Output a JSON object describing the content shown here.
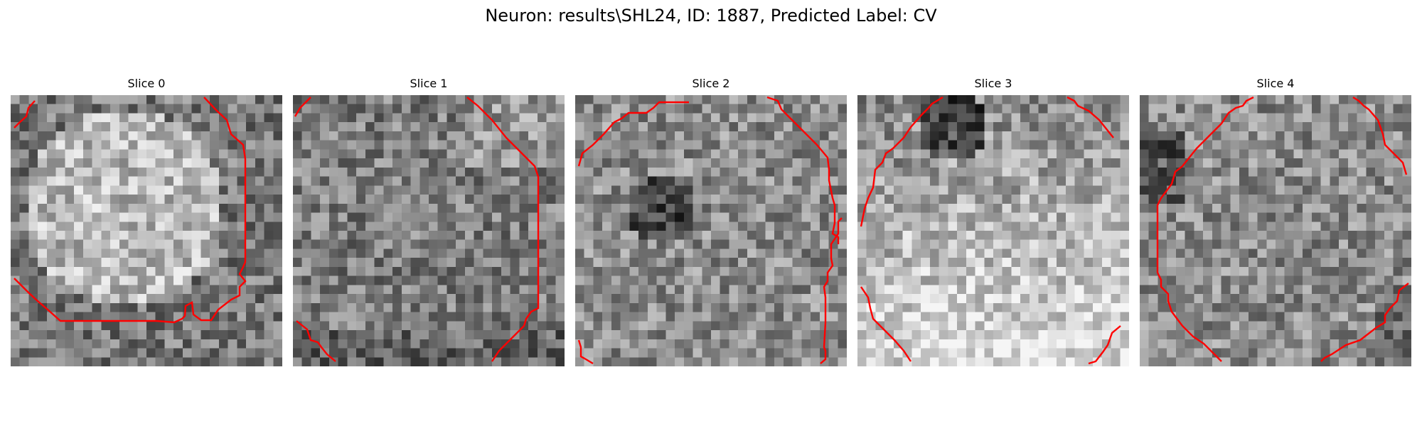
{
  "figure": {
    "title": "Neuron: results\\SHL24, ID: 1887, Predicted Label: CV"
  },
  "colors": {
    "contour": "#ff0000",
    "background": "#ffffff"
  },
  "panels": [
    {
      "title": "Slice 0"
    },
    {
      "title": "Slice 1"
    },
    {
      "title": "Slice 2"
    },
    {
      "title": "Slice 3"
    },
    {
      "title": "Slice 4"
    }
  ]
}
